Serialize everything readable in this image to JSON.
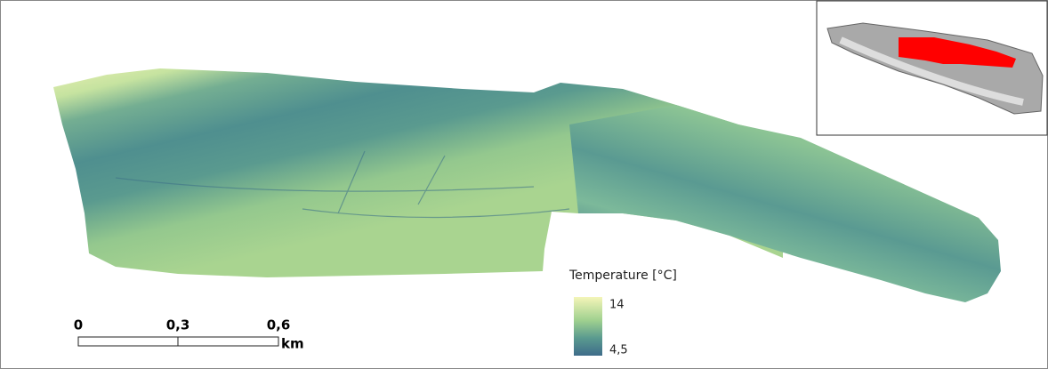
{
  "legend": {
    "title": "Temperature [°C]",
    "max_label": "14",
    "min_label": "4,5"
  },
  "scale_bar": {
    "labels": [
      "0",
      "0,3",
      "0,6"
    ],
    "unit": "km"
  }
}
